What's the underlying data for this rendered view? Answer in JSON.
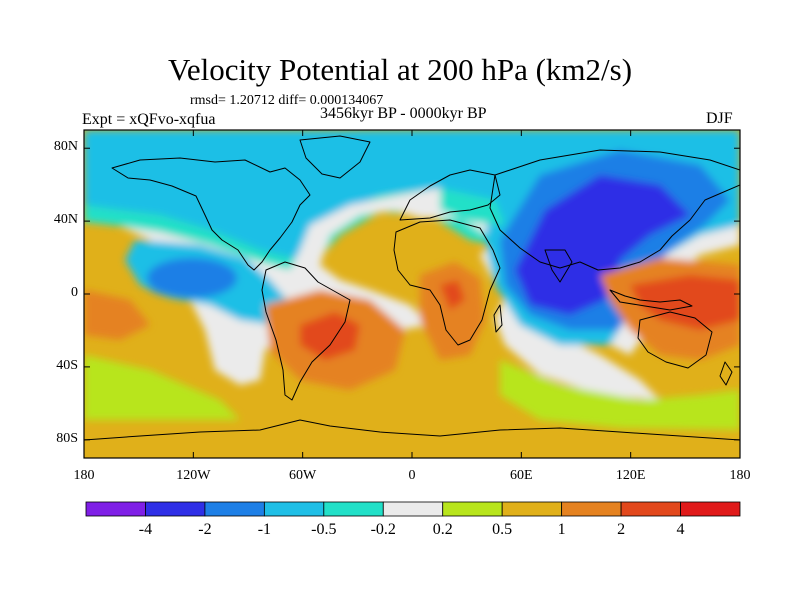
{
  "title": "Velocity Potential at 200 hPa (km2/s)",
  "stats": "rmsd= 1.20712 diff= 0.000134067",
  "experiment": "Expt = xQFvo-xqfua",
  "period": "3456kyr BP - 0000kyr BP",
  "season": "DJF",
  "map": {
    "lon_range": [
      -180,
      180
    ],
    "lat_range": [
      -90,
      90
    ],
    "x_ticks": [
      {
        "label": "180",
        "lon": -180
      },
      {
        "label": "120W",
        "lon": -120
      },
      {
        "label": "60W",
        "lon": -60
      },
      {
        "label": "0",
        "lon": 0
      },
      {
        "label": "60E",
        "lon": 60
      },
      {
        "label": "120E",
        "lon": 120
      },
      {
        "label": "180",
        "lon": 180
      }
    ],
    "y_ticks": [
      {
        "label": "80N",
        "lat": 80
      },
      {
        "label": "40N",
        "lat": 40
      },
      {
        "label": "0",
        "lat": 0
      },
      {
        "label": "40S",
        "lat": -40
      },
      {
        "label": "80S",
        "lat": -80
      }
    ]
  },
  "colorbar": {
    "colors": [
      "#7f1fe6",
      "#2f2fe6",
      "#1e7fe6",
      "#1fbfe6",
      "#22e0c8",
      "#ebebeb",
      "#b8e51c",
      "#e0b01a",
      "#e58220",
      "#e2481c",
      "#e01a1a"
    ],
    "labels": [
      "-4",
      "-2",
      "-1",
      "-0.5",
      "-0.2",
      "0.2",
      "0.5",
      "1",
      "2",
      "4"
    ]
  }
}
